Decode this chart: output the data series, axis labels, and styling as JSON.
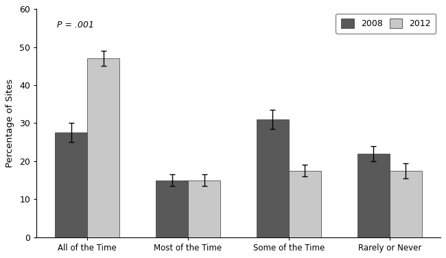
{
  "categories": [
    "All of the Time",
    "Most of the Time",
    "Some of the Time",
    "Rarely or Never"
  ],
  "values_2008": [
    27.5,
    15.0,
    31.0,
    22.0
  ],
  "values_2012": [
    47.0,
    15.0,
    17.5,
    17.5
  ],
  "errors_2008": [
    2.5,
    1.5,
    2.5,
    2.0
  ],
  "errors_2012": [
    2.0,
    1.5,
    1.5,
    2.0
  ],
  "color_2008": "#595959",
  "color_2012": "#c8c8c8",
  "ylabel": "Percentage of Sites",
  "ylim": [
    0,
    60
  ],
  "yticks": [
    0,
    10,
    20,
    30,
    40,
    50,
    60
  ],
  "annotation": "P = .001",
  "legend_2008": "2008",
  "legend_2012": "2012",
  "bar_width": 0.32,
  "background_color": "#ffffff",
  "edge_color": "#333333",
  "errorbar_capsize": 3,
  "errorbar_linewidth": 1.0,
  "errorbar_color": "#000000"
}
